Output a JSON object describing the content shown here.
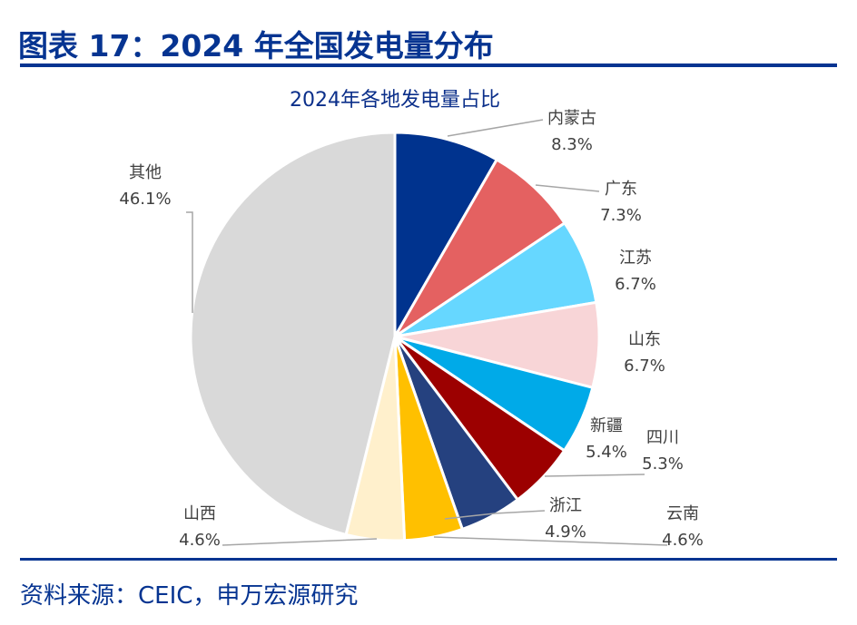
{
  "header": {
    "title": "图表 17：2024 年全国发电量分布"
  },
  "footer": {
    "source": "资料来源：CEIC，申万宏源研究"
  },
  "chart_data": {
    "type": "pie",
    "title": "2024年各地发电量占比",
    "unit": "%",
    "slices": [
      {
        "label": "内蒙古",
        "value": 8.3,
        "display": "8.3%",
        "color": "#00338E"
      },
      {
        "label": "广东",
        "value": 7.3,
        "display": "7.3%",
        "color": "#E46161"
      },
      {
        "label": "江苏",
        "value": 6.7,
        "display": "6.7%",
        "color": "#66D7FF"
      },
      {
        "label": "山东",
        "value": 6.7,
        "display": "6.7%",
        "color": "#F8D5D7"
      },
      {
        "label": "新疆",
        "value": 5.4,
        "display": "5.4%",
        "color": "#00AAE8"
      },
      {
        "label": "四川",
        "value": 5.3,
        "display": "5.3%",
        "color": "#9C0000"
      },
      {
        "label": "浙江",
        "value": 4.9,
        "display": "4.9%",
        "color": "#25417F"
      },
      {
        "label": "云南",
        "value": 4.6,
        "display": "4.6%",
        "color": "#FFC000"
      },
      {
        "label": "山西",
        "value": 4.6,
        "display": "4.6%",
        "color": "#FFF0CC"
      },
      {
        "label": "其他",
        "value": 46.1,
        "display": "46.1%",
        "color": "#D9D9D9"
      }
    ],
    "start_angle": "12 o'clock",
    "direction": "clockwise",
    "legend": "none"
  }
}
